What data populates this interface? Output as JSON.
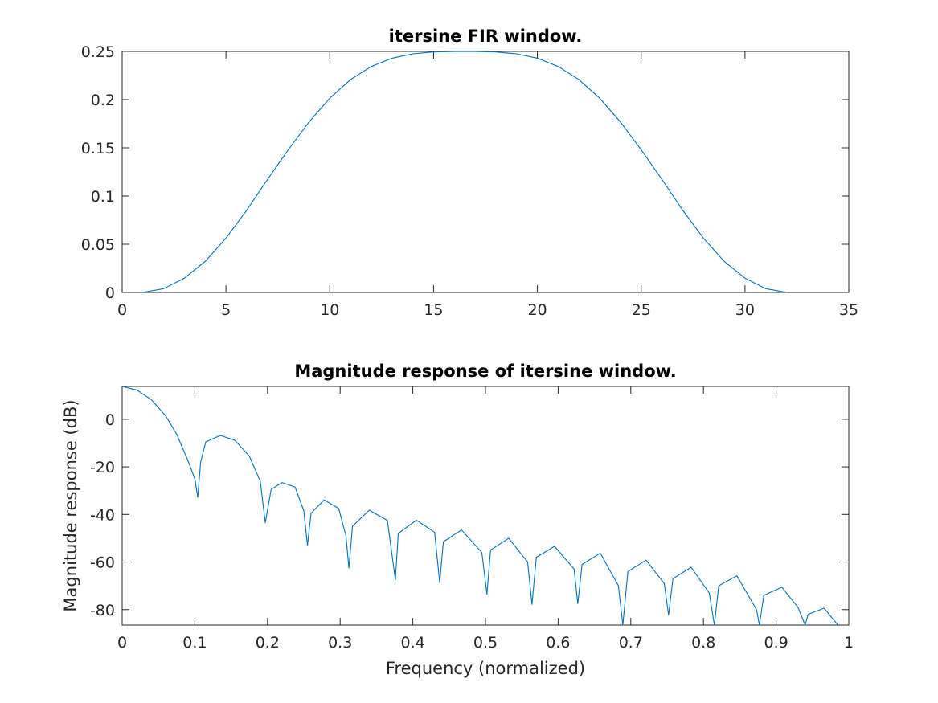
{
  "chart_data": [
    {
      "type": "line",
      "title": "itersine FIR window.",
      "xlabel": "",
      "ylabel": "",
      "xlim": [
        0,
        35
      ],
      "ylim": [
        0,
        0.25
      ],
      "xticks": [
        0,
        5,
        10,
        15,
        20,
        25,
        30,
        35
      ],
      "yticks": [
        0,
        0.05,
        0.1,
        0.15,
        0.2,
        0.25
      ],
      "xtick_labels": [
        "0",
        "5",
        "10",
        "15",
        "20",
        "25",
        "30",
        "35"
      ],
      "ytick_labels": [
        "0",
        "0.05",
        "0.1",
        "0.15",
        "0.2",
        "0.25"
      ],
      "grid": false,
      "color": "#0072bd",
      "series": [
        {
          "x": [
            1,
            2,
            3,
            4,
            5,
            6,
            7,
            8,
            9,
            10,
            11,
            12,
            13,
            14,
            15,
            16,
            17,
            18,
            19,
            20,
            21,
            22,
            23,
            24,
            25,
            26,
            27,
            28,
            29,
            30,
            31,
            32
          ],
          "values": [
            0.0001,
            0.0039,
            0.0148,
            0.0322,
            0.0563,
            0.0853,
            0.1172,
            0.148,
            0.1768,
            0.2015,
            0.2208,
            0.2344,
            0.243,
            0.2475,
            0.2494,
            0.2499,
            0.2499,
            0.2494,
            0.2475,
            0.243,
            0.2344,
            0.2208,
            0.2015,
            0.1768,
            0.148,
            0.1172,
            0.0853,
            0.0563,
            0.0322,
            0.0148,
            0.0039,
            0.0001
          ]
        }
      ]
    },
    {
      "type": "line",
      "title": "Magnitude response of itersine window.",
      "xlabel": "Frequency (normalized)",
      "ylabel": "Magnitude response (dB)",
      "xlim": [
        0,
        1
      ],
      "ylim": [
        -86.5,
        13.8
      ],
      "xticks": [
        0,
        0.1,
        0.2,
        0.3,
        0.4,
        0.5,
        0.6,
        0.7,
        0.8,
        0.9,
        1
      ],
      "yticks": [
        -80,
        -60,
        -40,
        -20,
        0
      ],
      "xtick_labels": [
        "0",
        "0.1",
        "0.2",
        "0.3",
        "0.4",
        "0.5",
        "0.6",
        "0.7",
        "0.8",
        "0.9",
        "1"
      ],
      "ytick_labels": [
        "-80",
        "-60",
        "-40",
        "-20",
        "0"
      ],
      "grid": false,
      "color": "#0072bd",
      "series": [
        {
          "x": [
            0,
            0.02,
            0.04,
            0.06,
            0.075,
            0.09,
            0.1,
            0.104,
            0.108,
            0.115,
            0.135,
            0.155,
            0.175,
            0.19,
            0.197,
            0.205,
            0.22,
            0.238,
            0.25,
            0.255,
            0.26,
            0.278,
            0.298,
            0.308,
            0.312,
            0.317,
            0.34,
            0.365,
            0.376,
            0.38,
            0.405,
            0.43,
            0.437,
            0.442,
            0.467,
            0.495,
            0.502,
            0.507,
            0.532,
            0.558,
            0.564,
            0.57,
            0.595,
            0.622,
            0.627,
            0.633,
            0.658,
            0.683,
            0.689,
            0.696,
            0.721,
            0.746,
            0.752,
            0.758,
            0.783,
            0.808,
            0.815,
            0.821,
            0.846,
            0.873,
            0.877,
            0.883,
            0.908,
            0.93,
            0.94,
            0.944,
            0.966,
            0.985
          ],
          "values": [
            13.8,
            12.3,
            8.3,
            1.4,
            -6.3,
            -17.0,
            -25.0,
            -32.8,
            -18.0,
            -9.5,
            -6.8,
            -8.8,
            -15.5,
            -26.0,
            -43.5,
            -29.5,
            -26.6,
            -28.5,
            -38.5,
            -53.0,
            -39.5,
            -33.9,
            -37.5,
            -49.0,
            -62.5,
            -45.0,
            -38.2,
            -42.5,
            -67.5,
            -48.0,
            -42.4,
            -47.5,
            -68.7,
            -51.5,
            -46.5,
            -56.0,
            -73.5,
            -55.0,
            -50.0,
            -60.0,
            -77.8,
            -58.0,
            -53.4,
            -63.0,
            -77.5,
            -61.0,
            -56.3,
            -70.0,
            -86.5,
            -64.0,
            -59.2,
            -69.0,
            -82.2,
            -67.0,
            -62.2,
            -73.0,
            -86.5,
            -70.0,
            -65.8,
            -80.0,
            -86.5,
            -74.0,
            -70.6,
            -79.0,
            -86.5,
            -82.0,
            -79.4,
            -86.5
          ]
        }
      ]
    }
  ]
}
